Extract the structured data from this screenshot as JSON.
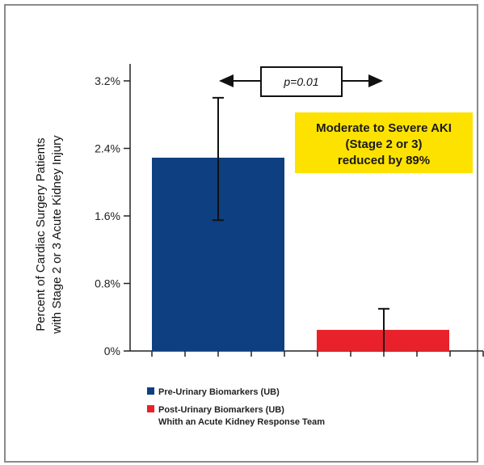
{
  "chart_data": {
    "type": "bar",
    "categories": [
      "Pre-Urinary Biomarkers (UB)",
      "Post-Urinary Biomarkers (UB)"
    ],
    "values": [
      2.29,
      0.25
    ],
    "error_high": [
      3.0,
      0.5
    ],
    "error_low": [
      1.55,
      0.0
    ],
    "colors": [
      "#0e3f80",
      "#e9212b"
    ],
    "title": "",
    "xlabel": "",
    "ylabel": [
      "Percent of Cardiac Surgery Patients",
      "with Stage 2 or 3 Acute Kidney Injury"
    ],
    "ylim": [
      0,
      3.2
    ],
    "yticks": [
      0,
      0.8,
      1.6,
      2.4,
      3.2
    ],
    "ytick_labels": [
      "0%",
      "0.8%",
      "1.6%",
      "2.4%",
      "3.2%"
    ],
    "grid": false,
    "legend": [
      {
        "label": "Pre-Urinary Biomarkers (UB)",
        "color": "#0e3f80"
      },
      {
        "label": "Post-Urinary Biomarkers (UB)",
        "label2": "Whith an Acute Kidney Response Team",
        "color": "#e9212b"
      }
    ],
    "legend_position": "bottom-left",
    "annotations": {
      "p_value": "p=0.01",
      "callout_lines": [
        "Moderate to Severe AKI",
        "(Stage 2 or 3)",
        "reduced by 89%"
      ],
      "callout_color": "#fde200"
    }
  }
}
